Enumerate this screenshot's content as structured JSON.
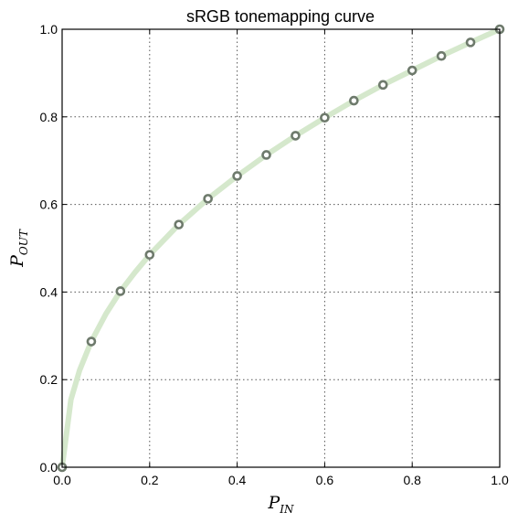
{
  "chart_data": {
    "type": "line",
    "title": "sRGB tonemapping curve",
    "xlabel": {
      "base": "P",
      "sub": "IN"
    },
    "ylabel": {
      "base": "P",
      "sub": "OUT"
    },
    "xlim": [
      0,
      1
    ],
    "ylim": [
      0,
      1
    ],
    "xticks": [
      "0.0",
      "0.2",
      "0.4",
      "0.6",
      "0.8",
      "1.0"
    ],
    "yticks": [
      "0.0",
      "0.2",
      "0.4",
      "0.6",
      "0.8",
      "1.0"
    ],
    "grid": true,
    "line": {
      "color": "#d5e8cc",
      "x": [
        0,
        0.02,
        0.04,
        0.0667,
        0.1,
        0.1333,
        0.1667,
        0.2,
        0.2667,
        0.3333,
        0.4,
        0.4667,
        0.5333,
        0.6,
        0.6667,
        0.7333,
        0.8,
        0.8667,
        0.9333,
        1.0
      ],
      "y": [
        0,
        0.154,
        0.222,
        0.287,
        0.35,
        0.402,
        0.445,
        0.485,
        0.554,
        0.613,
        0.665,
        0.713,
        0.757,
        0.798,
        0.837,
        0.873,
        0.906,
        0.939,
        0.97,
        1.0
      ]
    },
    "markers": {
      "color": "#6e7a6c",
      "x": [
        0,
        0.0667,
        0.1333,
        0.2,
        0.2667,
        0.3333,
        0.4,
        0.4667,
        0.5333,
        0.6,
        0.6667,
        0.7333,
        0.8,
        0.8667,
        0.9333,
        1.0
      ],
      "y": [
        0,
        0.287,
        0.402,
        0.485,
        0.554,
        0.613,
        0.665,
        0.713,
        0.757,
        0.798,
        0.837,
        0.873,
        0.906,
        0.939,
        0.97,
        1.0
      ]
    }
  }
}
